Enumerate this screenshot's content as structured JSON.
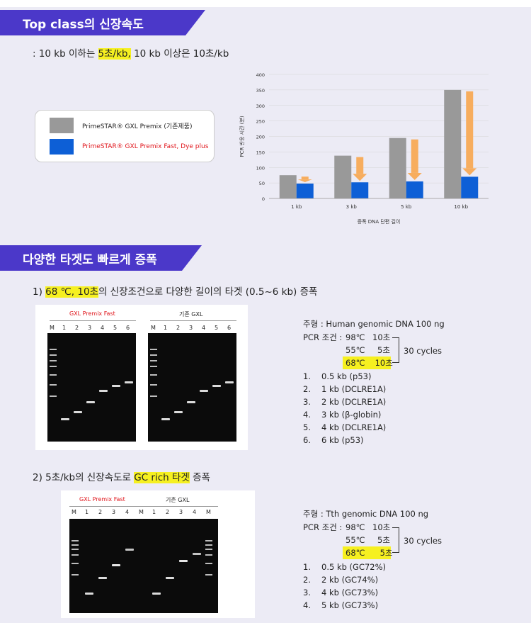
{
  "section1": {
    "title": "Top class의 신장속도",
    "sub_prefix": ": 10 kb 이하는 ",
    "sub_highlight": "5초/kb,",
    "sub_suffix": " 10 kb 이상은 10초/kb"
  },
  "legend": {
    "items": [
      {
        "label": "PrimeSTAR® GXL Premix (기존제품)",
        "color": "#999999",
        "text_color": "#222222"
      },
      {
        "label": "PrimeSTAR® GXL Premix Fast, Dye plus",
        "color": "#0d5fd6",
        "text_color": "#e0151b"
      }
    ]
  },
  "chart_data": {
    "type": "bar",
    "categories": [
      "1 kb",
      "3 kb",
      "5 kb",
      "10 kb"
    ],
    "series": [
      {
        "name": "PrimeSTAR® GXL Premix (기존제품)",
        "values": [
          75,
          138,
          195,
          350
        ]
      },
      {
        "name": "PrimeSTAR® GXL Premix Fast, Dye plus",
        "values": [
          48,
          52,
          55,
          70
        ]
      }
    ],
    "ylim": [
      0,
      400
    ],
    "yticks": [
      0,
      50,
      100,
      150,
      200,
      250,
      300,
      350,
      400
    ],
    "ylabel": "PCR 반응 시간 (분)",
    "xlabel": "증폭 DNA 단편 길이",
    "grid": true,
    "colors": {
      "old": "#999999",
      "new": "#0d5fd6",
      "arrow": "#f7ad5e"
    }
  },
  "section2": {
    "title": "다양한 타겟도 빠르게 증폭"
  },
  "exp1": {
    "num": "1) ",
    "hl": "68 ℃, 10초",
    "rest": "의 신장조건으로 다양한 길이의 타겟 (0.5~6 kb) 증폭",
    "gel_title_left": "GXL Premix Fast",
    "gel_title_right": "기존 GXL",
    "lanes": [
      "M",
      "1",
      "2",
      "3",
      "4",
      "5",
      "6"
    ],
    "template": "주형 : Human genomic DNA 100 ng",
    "pcr_label": "PCR 조건 :",
    "steps": [
      {
        "temp": "98℃",
        "time": "10초"
      },
      {
        "temp": "55℃",
        "time": "5초"
      },
      {
        "temp": "68℃",
        "time": "10초"
      }
    ],
    "cycles": "30 cycles",
    "items": [
      {
        "n": "1.",
        "t": "0.5 kb (p53)"
      },
      {
        "n": "2.",
        "t": "1 kb (DCLRE1A)"
      },
      {
        "n": "3.",
        "t": "2 kb (DCLRE1A)"
      },
      {
        "n": "4.",
        "t": "3 kb (β-globin)"
      },
      {
        "n": "5.",
        "t": "4 kb (DCLRE1A)"
      },
      {
        "n": "6.",
        "t": "6 kb (p53)"
      }
    ]
  },
  "exp2": {
    "num": "2) ",
    "pre": "5초/kb의 신장속도로 ",
    "hl": "GC rich 타겟",
    "rest": " 증폭",
    "gel_title_left": "GXL Premix Fast",
    "gel_title_right": "기존 GXL",
    "lanes": [
      "M",
      "1",
      "2",
      "3",
      "4",
      "M",
      "1",
      "2",
      "3",
      "4",
      "M"
    ],
    "template": "주형 : Tth genomic DNA 100 ng",
    "pcr_label": "PCR 조건 :",
    "steps": [
      {
        "temp": "98℃",
        "time": "10초"
      },
      {
        "temp": "55℃",
        "time": "5초"
      },
      {
        "temp": "68℃",
        "time": "5초"
      }
    ],
    "cycles": "30 cycles",
    "items": [
      {
        "n": "1.",
        "t": "0.5 kb (GC72%)"
      },
      {
        "n": "2.",
        "t": "2 kb (GC74%)"
      },
      {
        "n": "3.",
        "t": "4 kb (GC73%)"
      },
      {
        "n": "4.",
        "t": "5 kb (GC73%)"
      }
    ]
  }
}
